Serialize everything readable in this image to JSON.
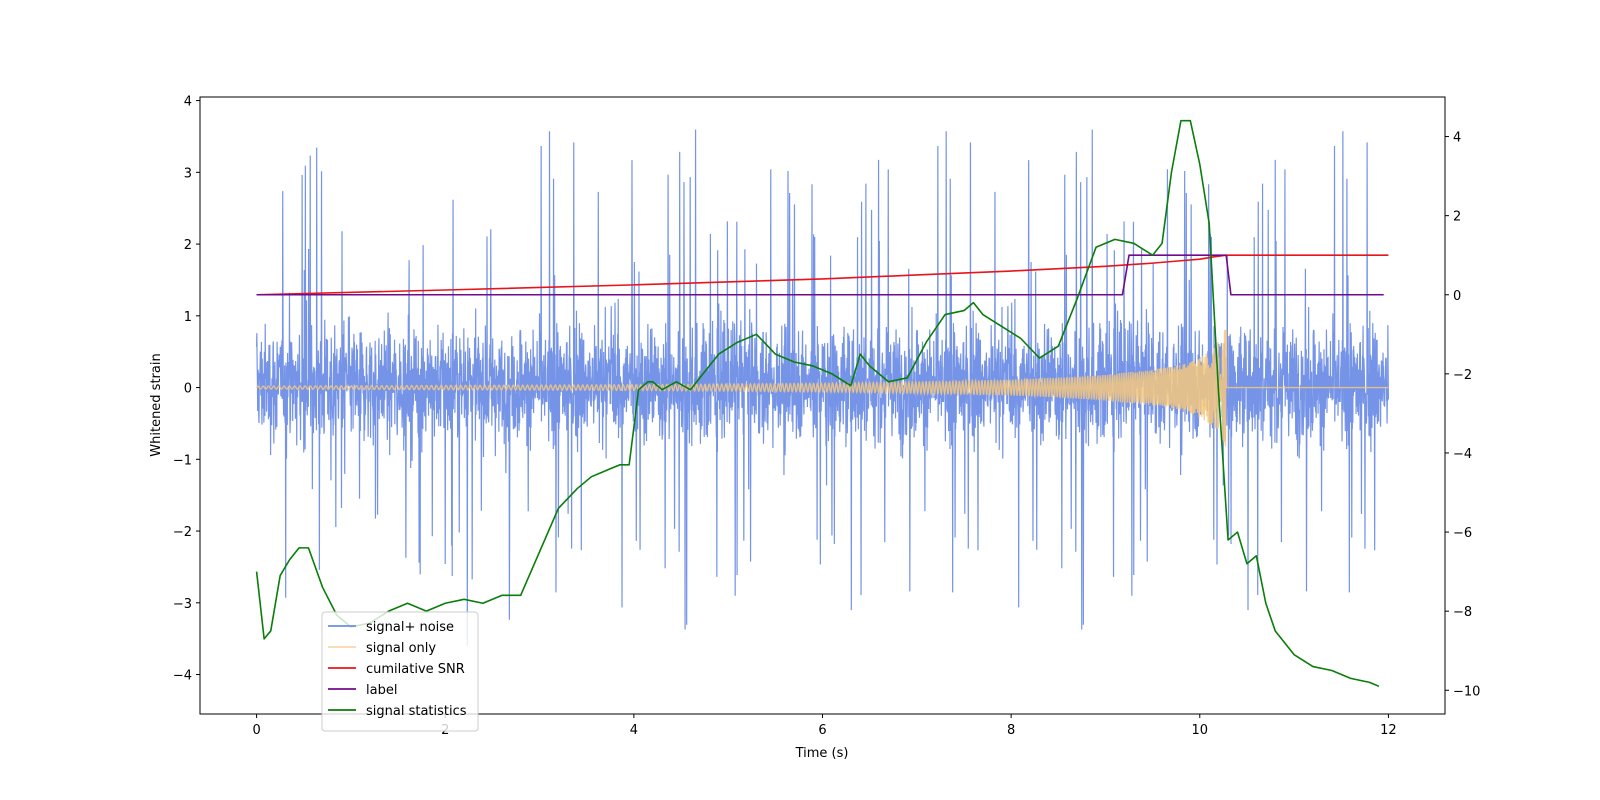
{
  "chart_data": {
    "type": "line",
    "title": "",
    "xlabel": "Time (s)",
    "ylabel": "Whitened strain",
    "y2label": "",
    "xlim": [
      -0.6,
      12.6
    ],
    "ylim": [
      -4.55,
      4.05
    ],
    "y2lim": [
      -10.6,
      5.0
    ],
    "xticks": [
      0,
      2,
      4,
      6,
      8,
      10,
      12
    ],
    "yticks": [
      -4,
      -3,
      -2,
      -1,
      0,
      1,
      2,
      3,
      4
    ],
    "y2ticks": [
      -10,
      -8,
      -6,
      -4,
      -2,
      0,
      2,
      4
    ],
    "tick_labels": {
      "x": [
        "0",
        "2",
        "4",
        "6",
        "8",
        "10",
        "12"
      ],
      "y": [
        "−4",
        "−3",
        "−2",
        "−1",
        "0",
        "1",
        "2",
        "3",
        "4"
      ],
      "y2": [
        "−10",
        "−8",
        "−6",
        "−4",
        "−2",
        "0",
        "2",
        "4"
      ]
    },
    "grid": false,
    "legend_position": "lower-left",
    "series": [
      {
        "name": "signal+ noise",
        "axis": "left",
        "color": "#6e8ee6",
        "style": "dense-noise",
        "time_range": [
          0,
          12
        ],
        "typical_range": [
          -1.6,
          1.9
        ],
        "extreme_range": [
          -4.2,
          3.65
        ]
      },
      {
        "name": "signal only",
        "axis": "left",
        "color": "#f5c77e",
        "style": "chirp",
        "time_range": [
          0,
          12
        ],
        "merger_time": 10.28,
        "amplitude_envelope": {
          "x": [
            0,
            2,
            4,
            6,
            7,
            8,
            8.5,
            9,
            9.5,
            9.8,
            10,
            10.15,
            10.25,
            10.28
          ],
          "y": [
            0.02,
            0.03,
            0.04,
            0.06,
            0.08,
            0.11,
            0.14,
            0.18,
            0.25,
            0.32,
            0.42,
            0.55,
            0.75,
            1.1
          ]
        },
        "post_merger_value": 0.0
      },
      {
        "name": "cumilative SNR",
        "axis": "right",
        "color": "#e8141c",
        "x": [
          0,
          2,
          4,
          6,
          7,
          8,
          8.5,
          9,
          9.5,
          9.8,
          10,
          10.15,
          10.28,
          10.35,
          12
        ],
        "y": [
          0.0,
          0.12,
          0.25,
          0.4,
          0.5,
          0.6,
          0.66,
          0.72,
          0.8,
          0.86,
          0.9,
          0.96,
          1.0,
          1.0,
          1.0
        ]
      },
      {
        "name": "label",
        "axis": "right",
        "color": "#720a8c",
        "x": [
          0,
          9.18,
          9.25,
          10.28,
          10.33,
          11.95
        ],
        "y": [
          0,
          0,
          1,
          1,
          0,
          0
        ]
      },
      {
        "name": "signal statistics",
        "axis": "right",
        "color": "#0a7d0a",
        "x": [
          0,
          0.08,
          0.15,
          0.25,
          0.35,
          0.45,
          0.55,
          0.7,
          0.85,
          1.0,
          1.2,
          1.4,
          1.6,
          1.8,
          2.0,
          2.2,
          2.4,
          2.6,
          2.8,
          3.0,
          3.2,
          3.4,
          3.55,
          3.65,
          3.75,
          3.85,
          3.95,
          4.05,
          4.15,
          4.2,
          4.3,
          4.45,
          4.6,
          4.7,
          4.9,
          5.1,
          5.3,
          5.5,
          5.7,
          5.9,
          6.1,
          6.3,
          6.4,
          6.5,
          6.7,
          6.9,
          7.1,
          7.3,
          7.5,
          7.6,
          7.7,
          7.9,
          8.1,
          8.3,
          8.5,
          8.7,
          8.9,
          9.1,
          9.3,
          9.5,
          9.6,
          9.7,
          9.8,
          9.9,
          10.0,
          10.1,
          10.2,
          10.3,
          10.4,
          10.5,
          10.6,
          10.7,
          10.8,
          11.0,
          11.2,
          11.4,
          11.6,
          11.8,
          11.9
        ],
        "y": [
          -7.0,
          -8.7,
          -8.5,
          -7.1,
          -6.7,
          -6.4,
          -6.4,
          -7.4,
          -8.1,
          -8.4,
          -8.3,
          -8.0,
          -7.8,
          -8.0,
          -7.8,
          -7.7,
          -7.8,
          -7.6,
          -7.6,
          -6.5,
          -5.4,
          -4.9,
          -4.6,
          -4.5,
          -4.4,
          -4.3,
          -4.3,
          -2.4,
          -2.2,
          -2.2,
          -2.4,
          -2.2,
          -2.4,
          -2.1,
          -1.5,
          -1.2,
          -1.0,
          -1.5,
          -1.7,
          -1.8,
          -2.0,
          -2.3,
          -1.5,
          -1.8,
          -2.2,
          -2.1,
          -1.2,
          -0.5,
          -0.4,
          -0.2,
          -0.5,
          -0.8,
          -1.1,
          -1.6,
          -1.3,
          -0.1,
          1.2,
          1.4,
          1.3,
          1.0,
          1.3,
          3.1,
          4.4,
          4.4,
          3.3,
          1.8,
          -2.5,
          -6.2,
          -6.0,
          -6.8,
          -6.6,
          -7.8,
          -8.5,
          -9.1,
          -9.4,
          -9.5,
          -9.7,
          -9.8,
          -9.9
        ]
      }
    ]
  }
}
